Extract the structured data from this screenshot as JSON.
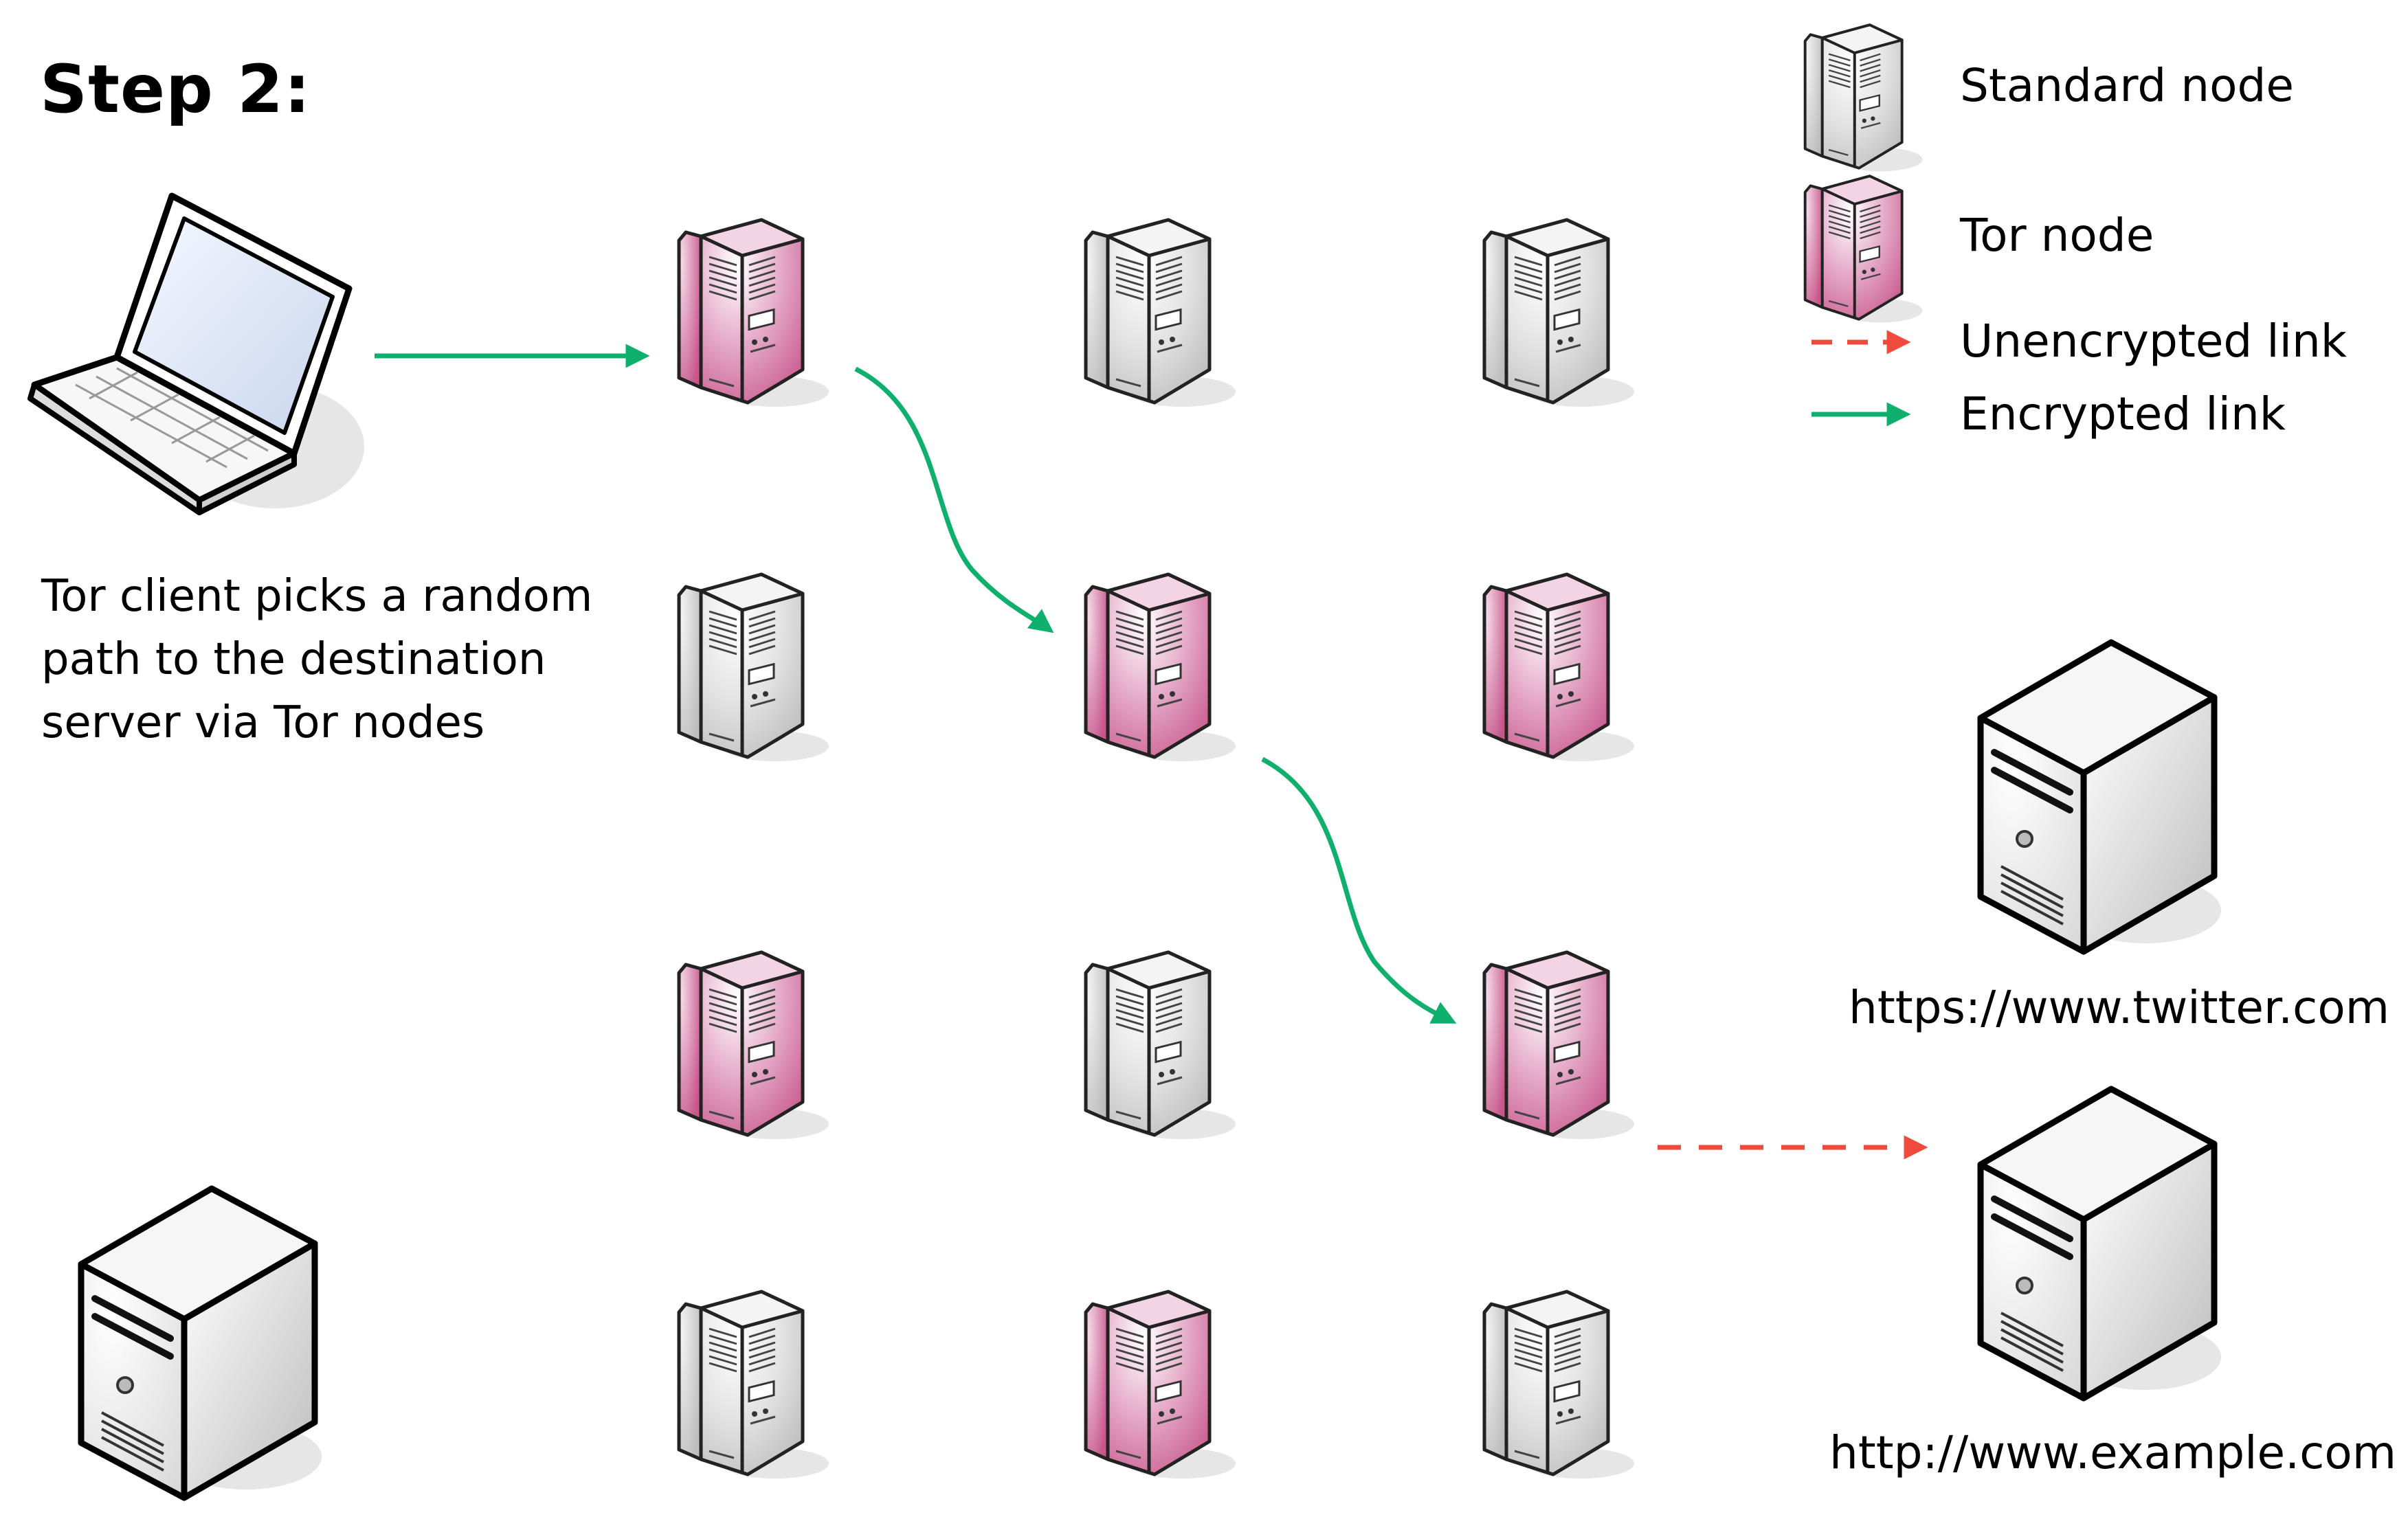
{
  "title": "Step 2:",
  "description": [
    "Tor client picks a random",
    "path to the destination",
    "server via Tor nodes"
  ],
  "legend": {
    "standard_node": "Standard node",
    "tor_node": "Tor node",
    "unencrypted_link": "Unencrypted link",
    "encrypted_link": "Encrypted link"
  },
  "destinations": {
    "twitter": "https://www.twitter.com",
    "example": "http://www.example.com"
  },
  "colors": {
    "tor_node": "#c2457f",
    "standard_node": "#c8c8c8",
    "encrypted_link": "#0fb06e",
    "unencrypted_link": "#ef4a3c"
  },
  "icons": {
    "client": "laptop-icon",
    "server": "server-tower-icon",
    "relay": "relay-node-icon"
  },
  "nodes": [
    {
      "row": 1,
      "col": 1,
      "type": "tor"
    },
    {
      "row": 1,
      "col": 2,
      "type": "standard"
    },
    {
      "row": 1,
      "col": 3,
      "type": "standard"
    },
    {
      "row": 2,
      "col": 1,
      "type": "standard"
    },
    {
      "row": 2,
      "col": 2,
      "type": "tor"
    },
    {
      "row": 2,
      "col": 3,
      "type": "tor"
    },
    {
      "row": 3,
      "col": 1,
      "type": "tor"
    },
    {
      "row": 3,
      "col": 2,
      "type": "standard"
    },
    {
      "row": 3,
      "col": 3,
      "type": "tor"
    },
    {
      "row": 4,
      "col": 1,
      "type": "standard"
    },
    {
      "row": 4,
      "col": 2,
      "type": "tor"
    },
    {
      "row": 4,
      "col": 3,
      "type": "standard"
    }
  ],
  "links": [
    {
      "from": "client",
      "to": "node-1-1",
      "type": "encrypted"
    },
    {
      "from": "node-1-1",
      "to": "node-2-2",
      "type": "encrypted"
    },
    {
      "from": "node-2-2",
      "to": "node-3-3",
      "type": "encrypted"
    },
    {
      "from": "node-3-3",
      "to": "server-example",
      "type": "unencrypted"
    }
  ]
}
